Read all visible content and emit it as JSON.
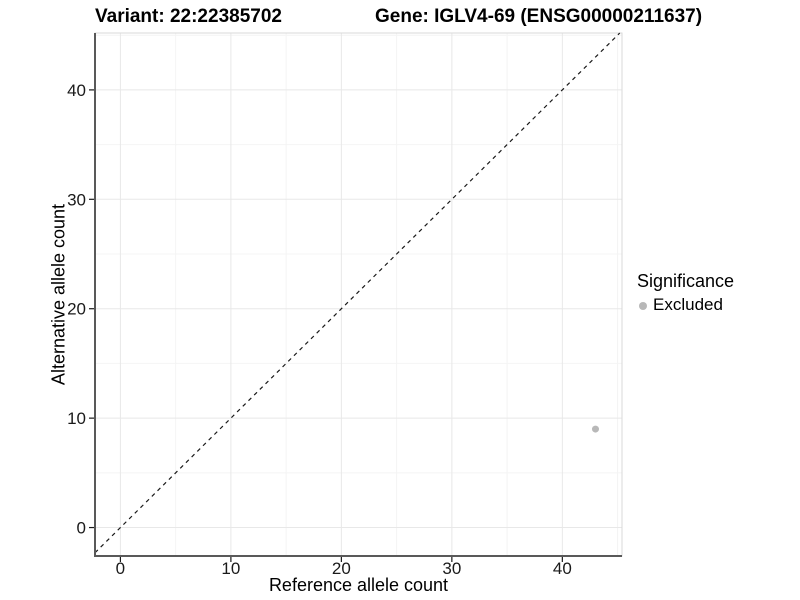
{
  "chart_data": {
    "type": "scatter",
    "titles": {
      "left": "Variant: 22:22385702",
      "right": "Gene: IGLV4-69 (ENSG00000211637)"
    },
    "xlabel": "Reference allele count",
    "ylabel": "Alternative allele count",
    "x_ticks": [
      0,
      10,
      20,
      30,
      40
    ],
    "y_ticks": [
      0,
      10,
      20,
      30,
      40
    ],
    "xlim": [
      -2.3,
      45.4
    ],
    "ylim": [
      -2.6,
      45.2
    ],
    "grid": {
      "major": true,
      "minor": true
    },
    "reference_line": {
      "kind": "identity",
      "equation": "y = x",
      "style": "dashed",
      "color": "#1a1a1a"
    },
    "series": [
      {
        "name": "Excluded",
        "color": "#b8b8b8",
        "point_radius": 3.5,
        "points": [
          [
            43,
            9
          ]
        ]
      }
    ],
    "legend": {
      "title": "Significance",
      "position": "right",
      "items": [
        {
          "label": "Excluded",
          "color": "#b8b8b8"
        }
      ]
    }
  },
  "colors": {
    "background": "#ffffff",
    "grid_major": "#e8e8e8",
    "grid_minor": "#f4f4f4",
    "panel_border": "#d9d9d9",
    "axis_line": "#595959",
    "tick_mark": "#1a1a1a",
    "tick_label": "#1a1a1a",
    "text": "#000000"
  }
}
